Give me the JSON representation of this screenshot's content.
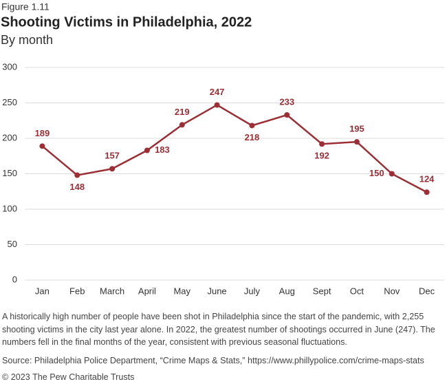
{
  "chart_data": {
    "type": "line",
    "figure_label": "Figure 1.11",
    "title": "Shooting Victims in Philadelphia, 2022",
    "subtitle": "By month",
    "categories": [
      "Jan",
      "Feb",
      "March",
      "April",
      "May",
      "June",
      "July",
      "Aug",
      "Sept",
      "Oct",
      "Nov",
      "Dec"
    ],
    "values": [
      189,
      148,
      157,
      183,
      219,
      247,
      218,
      233,
      192,
      195,
      150,
      124
    ],
    "color": "#9b2f35",
    "ylim": [
      0,
      300
    ],
    "yticks": [
      0,
      50,
      100,
      150,
      200,
      250,
      300
    ],
    "grid": true,
    "description": "A historically high number of people have been shot in Philadelphia since the start of the pandemic, with 2,255 shooting victims in the city last year alone. In 2022, the greatest number of shootings occurred in June (247). The numbers fell in the final months of the year, consistent with previous seasonal fluctuations.",
    "source": "Source: Philadelphia Police Department, “Crime Maps & Stats,” https://www.phillypolice.com/crime-maps-stats",
    "copyright": "© 2023 The Pew Charitable Trusts"
  }
}
